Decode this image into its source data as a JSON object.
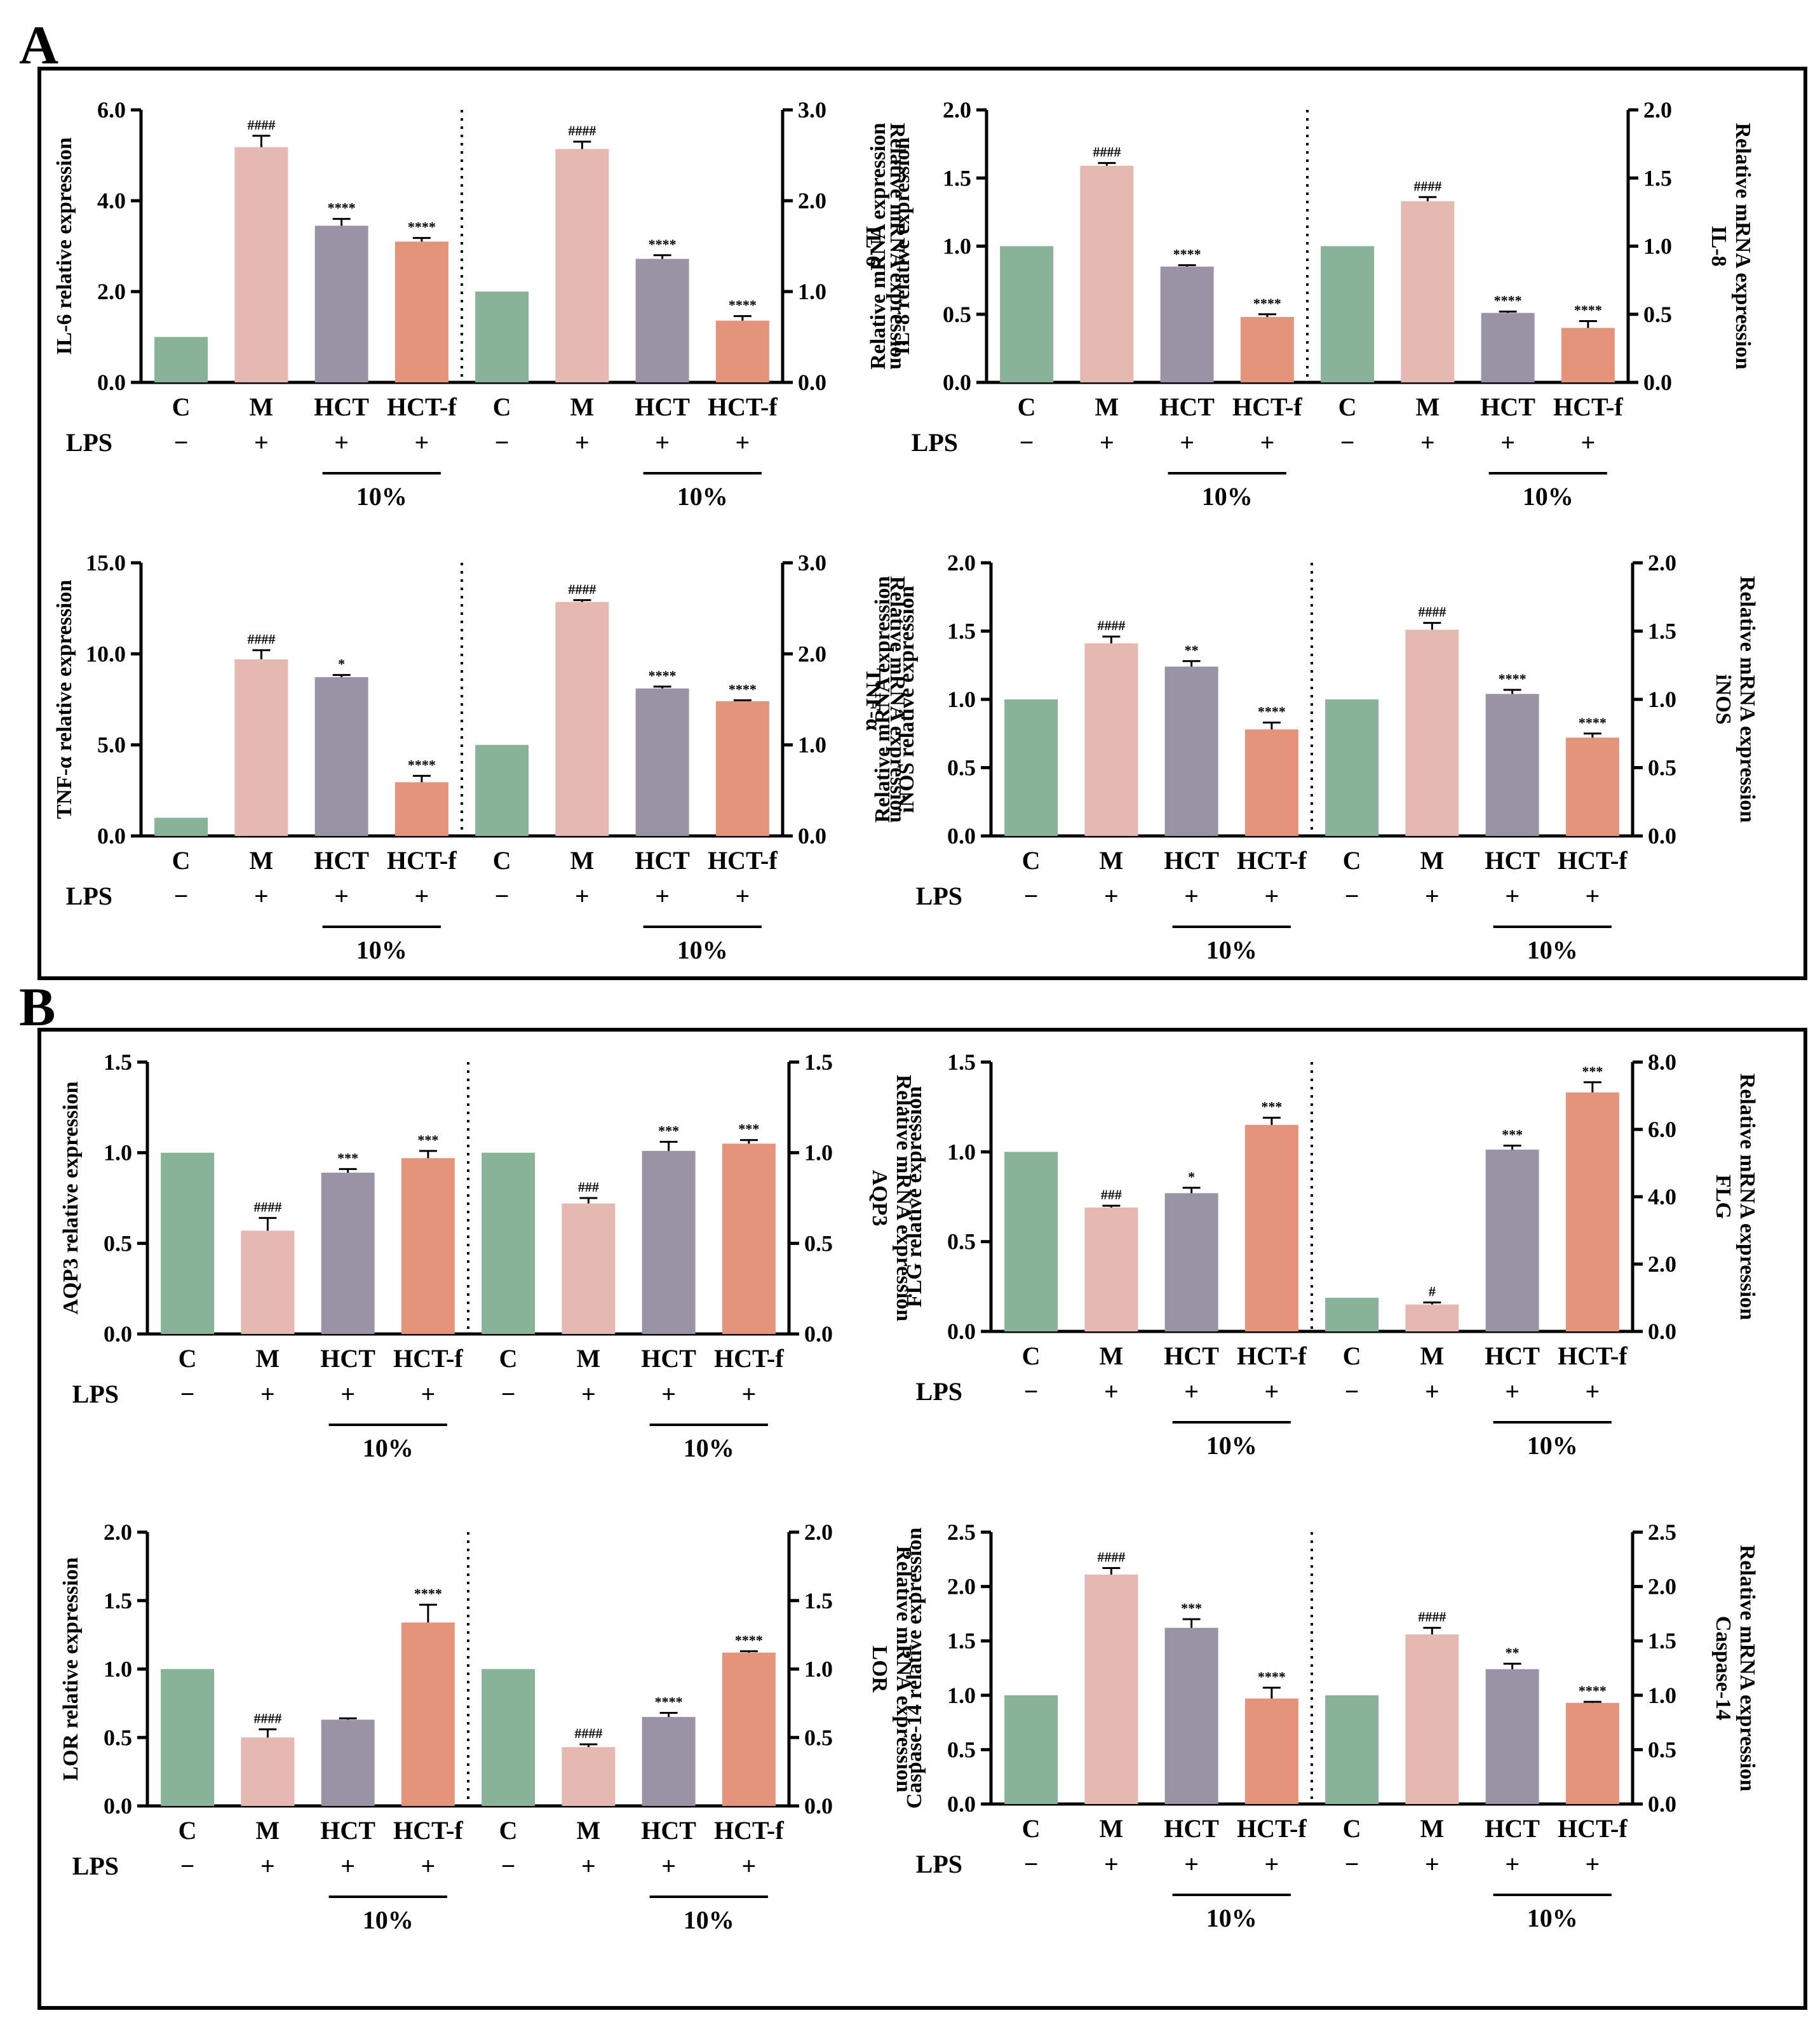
{
  "figure": {
    "panels": [
      {
        "letter": "A",
        "charts": [
          0,
          1,
          2,
          3
        ]
      },
      {
        "letter": "B",
        "charts": [
          4,
          5,
          6,
          7
        ]
      }
    ]
  },
  "colors": {
    "C": "#88b398",
    "M": "#e5b8b2",
    "HCT": "#9a93a5",
    "HCT-f": "#e5937b"
  },
  "chart_data": [
    {
      "type": "bar",
      "id": "il6",
      "categories": [
        "C",
        "M",
        "HCT",
        "HCT-f",
        "C",
        "M",
        "HCT",
        "HCT-f"
      ],
      "lps": [
        "−",
        "+",
        "+",
        "+",
        "−",
        "+",
        "+",
        "+"
      ],
      "lps_label": "LPS",
      "conc_label": "10%",
      "left": {
        "ylabel": "IL-6 relative expression",
        "ylim": [
          0,
          6
        ],
        "ticks": [
          "0.0",
          "2.0",
          "4.0",
          "6.0"
        ],
        "values": [
          1.0,
          5.18,
          3.45,
          3.1
        ],
        "errors": [
          0,
          0.25,
          0.15,
          0.08
        ],
        "sig": [
          "",
          "####",
          "****",
          "****"
        ]
      },
      "right": {
        "ylabel_lines": [
          "Relative mRNA expression",
          "IL-6"
        ],
        "ylim": [
          0,
          3
        ],
        "ticks": [
          "0.0",
          "1.0",
          "2.0",
          "3.0"
        ],
        "values": [
          1.0,
          2.57,
          1.36,
          0.68
        ],
        "errors": [
          0,
          0.08,
          0.04,
          0.05
        ],
        "sig": [
          "",
          "####",
          "****",
          "****"
        ]
      }
    },
    {
      "type": "bar",
      "id": "il8",
      "categories": [
        "C",
        "M",
        "HCT",
        "HCT-f",
        "C",
        "M",
        "HCT",
        "HCT-f"
      ],
      "lps": [
        "−",
        "+",
        "+",
        "+",
        "−",
        "+",
        "+",
        "+"
      ],
      "lps_label": "LPS",
      "conc_label": "10%",
      "left": {
        "ylabel_lines": [
          "Relative mRNA expression",
          "IL-8 relative expression"
        ],
        "ylim": [
          0,
          2
        ],
        "ticks": [
          "0.0",
          "0.5",
          "1.0",
          "1.5",
          "2.0"
        ],
        "values": [
          1.0,
          1.59,
          0.85,
          0.48
        ],
        "errors": [
          0,
          0.02,
          0.01,
          0.02
        ],
        "sig": [
          "",
          "####",
          "****",
          "****"
        ]
      },
      "right": {
        "ylabel_lines": [
          "Relative mRNA expression",
          "IL-8"
        ],
        "ylim": [
          0,
          2
        ],
        "ticks": [
          "0.0",
          "0.5",
          "1.0",
          "1.5",
          "2.0"
        ],
        "values": [
          1.0,
          1.33,
          0.51,
          0.4
        ],
        "errors": [
          0,
          0.03,
          0.01,
          0.05
        ],
        "sig": [
          "",
          "####",
          "****",
          "****"
        ]
      }
    },
    {
      "type": "bar",
      "id": "tnfa",
      "categories": [
        "C",
        "M",
        "HCT",
        "HCT-f",
        "C",
        "M",
        "HCT",
        "HCT-f"
      ],
      "lps": [
        "−",
        "+",
        "+",
        "+",
        "−",
        "+",
        "+",
        "+"
      ],
      "lps_label": "LPS",
      "conc_label": "10%",
      "left": {
        "ylabel": "TNF-α relative expression",
        "ylim": [
          0,
          15
        ],
        "ticks": [
          "0.0",
          "5.0",
          "10.0",
          "15.0"
        ],
        "values": [
          1.0,
          9.7,
          8.72,
          2.95
        ],
        "errors": [
          0,
          0.5,
          0.12,
          0.35
        ],
        "sig": [
          "",
          "####",
          "*",
          "****"
        ]
      },
      "right": {
        "ylabel_lines": [
          "Relative mRNA expression",
          "TNF-α"
        ],
        "ylim": [
          0,
          3
        ],
        "ticks": [
          "0.0",
          "1.0",
          "2.0",
          "3.0"
        ],
        "values": [
          1.0,
          2.57,
          1.62,
          1.48
        ],
        "errors": [
          0,
          0.02,
          0.02,
          0.01
        ],
        "sig": [
          "",
          "####",
          "****",
          "****"
        ]
      }
    },
    {
      "type": "bar",
      "id": "inos",
      "categories": [
        "C",
        "M",
        "HCT",
        "HCT-f",
        "C",
        "M",
        "HCT",
        "HCT-f"
      ],
      "lps": [
        "−",
        "+",
        "+",
        "+",
        "−",
        "+",
        "+",
        "+"
      ],
      "lps_label": "LPS",
      "conc_label": "10%",
      "left": {
        "ylabel_lines": [
          "Relative mRNA expression",
          "iNOS relative expression"
        ],
        "ylim": [
          0,
          2
        ],
        "ticks": [
          "0.0",
          "0.5",
          "1.0",
          "1.5",
          "2.0"
        ],
        "values": [
          1.0,
          1.41,
          1.24,
          0.78
        ],
        "errors": [
          0,
          0.05,
          0.04,
          0.05
        ],
        "sig": [
          "",
          "####",
          "**",
          "****"
        ]
      },
      "right": {
        "ylabel_lines": [
          "Relative mRNA expression",
          "iNOS"
        ],
        "ylim": [
          0,
          2
        ],
        "ticks": [
          "0.0",
          "0.5",
          "1.0",
          "1.5",
          "2.0"
        ],
        "values": [
          1.0,
          1.51,
          1.04,
          0.72
        ],
        "errors": [
          0,
          0.05,
          0.03,
          0.03
        ],
        "sig": [
          "",
          "####",
          "****",
          "****"
        ]
      }
    },
    {
      "type": "bar",
      "id": "aqp3",
      "categories": [
        "C",
        "M",
        "HCT",
        "HCT-f",
        "C",
        "M",
        "HCT",
        "HCT-f"
      ],
      "lps": [
        "−",
        "+",
        "+",
        "+",
        "−",
        "+",
        "+",
        "+"
      ],
      "lps_label": "LPS",
      "conc_label": "10%",
      "left": {
        "ylabel": "AQP3 relative expression",
        "ylim": [
          0,
          1.5
        ],
        "ticks": [
          "0.0",
          "0.5",
          "1.0",
          "1.5"
        ],
        "values": [
          1.0,
          0.57,
          0.89,
          0.97
        ],
        "errors": [
          0,
          0.07,
          0.02,
          0.04
        ],
        "sig": [
          "",
          "####",
          "***",
          "***"
        ]
      },
      "right": {
        "ylabel_lines": [
          "Relative mRNA expression",
          "AQP3"
        ],
        "ylim": [
          0,
          1.5
        ],
        "ticks": [
          "0.0",
          "0.5",
          "1.0",
          "1.5"
        ],
        "values": [
          1.0,
          0.72,
          1.01,
          1.05
        ],
        "errors": [
          0,
          0.03,
          0.05,
          0.02
        ],
        "sig": [
          "",
          "###",
          "***",
          "***"
        ]
      }
    },
    {
      "type": "bar",
      "id": "flg",
      "categories": [
        "C",
        "M",
        "HCT",
        "HCT-f",
        "C",
        "M",
        "HCT",
        "HCT-f"
      ],
      "lps": [
        "−",
        "+",
        "+",
        "+",
        "−",
        "+",
        "+",
        "+"
      ],
      "lps_label": "LPS",
      "conc_label": "10%",
      "left": {
        "ylabel": "FLG relative expression",
        "ylim": [
          0,
          1.5
        ],
        "ticks": [
          "0.0",
          "0.5",
          "1.0",
          "1.5"
        ],
        "values": [
          1.0,
          0.69,
          0.77,
          1.15
        ],
        "errors": [
          0,
          0.01,
          0.03,
          0.04
        ],
        "sig": [
          "",
          "###",
          "*",
          "***"
        ]
      },
      "right": {
        "ylabel_lines": [
          "Relative mRNA expression",
          "FLG"
        ],
        "ylim": [
          0,
          8
        ],
        "ticks": [
          "0.0",
          "2.0",
          "4.0",
          "6.0",
          "8.0"
        ],
        "values": [
          1.0,
          0.8,
          5.4,
          7.1
        ],
        "errors": [
          0,
          0.06,
          0.12,
          0.3
        ],
        "sig": [
          "",
          "#",
          "***",
          "***"
        ]
      }
    },
    {
      "type": "bar",
      "id": "lor",
      "categories": [
        "C",
        "M",
        "HCT",
        "HCT-f",
        "C",
        "M",
        "HCT",
        "HCT-f"
      ],
      "lps": [
        "−",
        "+",
        "+",
        "+",
        "−",
        "+",
        "+",
        "+"
      ],
      "lps_label": "LPS",
      "conc_label": "10%",
      "left": {
        "ylabel": "LOR relative expression",
        "ylim": [
          0,
          2
        ],
        "ticks": [
          "0.0",
          "0.5",
          "1.0",
          "1.5",
          "2.0"
        ],
        "values": [
          1.0,
          0.5,
          0.63,
          1.34
        ],
        "errors": [
          0,
          0.06,
          0.01,
          0.13
        ],
        "sig": [
          "",
          "####",
          "",
          "****"
        ]
      },
      "right": {
        "ylabel_lines": [
          "Relative mRNA expression",
          "LOR"
        ],
        "ylim": [
          0,
          2
        ],
        "ticks": [
          "0.0",
          "0.5",
          "1.0",
          "1.5",
          "2.0"
        ],
        "values": [
          1.0,
          0.43,
          0.65,
          1.12
        ],
        "errors": [
          0,
          0.02,
          0.03,
          0.01
        ],
        "sig": [
          "",
          "####",
          "****",
          "****"
        ]
      }
    },
    {
      "type": "bar",
      "id": "casp14",
      "categories": [
        "C",
        "M",
        "HCT",
        "HCT-f",
        "C",
        "M",
        "HCT",
        "HCT-f"
      ],
      "lps": [
        "−",
        "+",
        "+",
        "+",
        "−",
        "+",
        "+",
        "+"
      ],
      "lps_label": "LPS",
      "conc_label": "10%",
      "left": {
        "ylabel": "Caspase-14 relative expression",
        "ylim": [
          0,
          2.5
        ],
        "ticks": [
          "0.0",
          "0.5",
          "1.0",
          "1.5",
          "2.0",
          "2.5"
        ],
        "values": [
          1.0,
          2.11,
          1.62,
          0.97
        ],
        "errors": [
          0,
          0.06,
          0.08,
          0.1
        ],
        "sig": [
          "",
          "####",
          "***",
          "****"
        ]
      },
      "right": {
        "ylabel_lines": [
          "Relative mRNA expression",
          "Caspase-14"
        ],
        "ylim": [
          0,
          2.5
        ],
        "ticks": [
          "0.0",
          "0.5",
          "1.0",
          "1.5",
          "2.0",
          "2.5"
        ],
        "values": [
          1.0,
          1.56,
          1.24,
          0.93
        ],
        "errors": [
          0,
          0.06,
          0.05,
          0.01
        ],
        "sig": [
          "",
          "####",
          "**",
          "****"
        ]
      }
    }
  ]
}
